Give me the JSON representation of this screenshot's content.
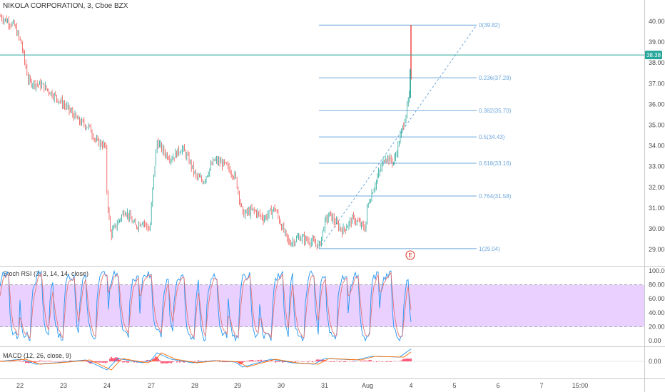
{
  "header": {
    "symbol_title": "NIKOLA CORPORATION, 3, Cboe BZX"
  },
  "price_axis": {
    "ticks": [
      "40.00",
      "39.00",
      "38.00",
      "37.00",
      "36.00",
      "35.00",
      "34.00",
      "33.00",
      "32.00",
      "31.00",
      "30.00",
      "29.00"
    ],
    "tick_values": [
      40,
      39,
      38,
      37,
      36,
      35,
      34,
      33,
      32,
      31,
      30,
      29
    ],
    "min": 28.6,
    "max": 40.75
  },
  "current_price": {
    "label": "38.38",
    "value": 38.38,
    "color": "#26a69a"
  },
  "fib": {
    "color": "#6fa8dc",
    "levels": [
      {
        "label": "0(39.82)",
        "value": 39.82
      },
      {
        "label": "0.236(37.28)",
        "value": 37.28
      },
      {
        "label": "0.382(35.70)",
        "value": 35.7
      },
      {
        "label": "0.5(34.43)",
        "value": 34.43
      },
      {
        "label": "0.618(33.16)",
        "value": 33.16
      },
      {
        "label": "0.764(31.58)",
        "value": 31.58
      },
      {
        "label": "1(29.04)",
        "value": 29.04
      }
    ]
  },
  "earnings_marker": {
    "label": "E",
    "color": "#d93025"
  },
  "stoch": {
    "title": "Stoch RSI (3, 3, 14, 14, close)",
    "ticks": [
      "100.00",
      "80.00",
      "60.00",
      "40.00",
      "20.00",
      "0.00"
    ],
    "tick_values": [
      100,
      80,
      60,
      40,
      20,
      0
    ],
    "band": [
      20,
      80
    ],
    "band_color": "#e9d0ff",
    "k_color": "#2196f3",
    "d_color": "#e57373"
  },
  "macd": {
    "title": "MACD (12, 26, close, 9)",
    "ticks": [
      "0.00"
    ],
    "hist_color": "#ff1744",
    "macd_color": "#2196f3",
    "signal_color": "#ff6d00"
  },
  "time_axis": {
    "labels": [
      "22",
      "23",
      "24",
      "27",
      "28",
      "29",
      "30",
      "31",
      "Aug",
      "4",
      "5",
      "6",
      "7",
      "15:00"
    ]
  },
  "candles": {
    "up_color": "#26a69a",
    "down_color": "#ef5350",
    "anchors": [
      [
        0,
        40.25
      ],
      [
        20,
        39.8
      ],
      [
        30,
        38.9
      ],
      [
        40,
        37.1
      ],
      [
        60,
        36.9
      ],
      [
        80,
        36.3
      ],
      [
        95,
        35.8
      ],
      [
        110,
        35.2
      ],
      [
        125,
        34.9
      ],
      [
        135,
        34.2
      ],
      [
        148,
        34.0
      ],
      [
        150,
        31.6
      ],
      [
        155,
        29.7
      ],
      [
        165,
        30.3
      ],
      [
        175,
        30.9
      ],
      [
        190,
        30.1
      ],
      [
        200,
        30.4
      ],
      [
        210,
        29.9
      ],
      [
        214,
        32.0
      ],
      [
        220,
        34.2
      ],
      [
        232,
        33.6
      ],
      [
        240,
        33.4
      ],
      [
        255,
        33.9
      ],
      [
        265,
        33.3
      ],
      [
        275,
        32.5
      ],
      [
        285,
        32.3
      ],
      [
        300,
        33.3
      ],
      [
        315,
        33.1
      ],
      [
        330,
        32.5
      ],
      [
        340,
        30.7
      ],
      [
        355,
        30.9
      ],
      [
        370,
        30.5
      ],
      [
        385,
        31.0
      ],
      [
        395,
        30.1
      ],
      [
        405,
        29.3
      ],
      [
        420,
        29.6
      ],
      [
        435,
        29.4
      ],
      [
        448,
        29.2
      ],
      [
        455,
        30.3
      ],
      [
        462,
        30.7
      ],
      [
        470,
        30.3
      ],
      [
        480,
        29.9
      ],
      [
        495,
        30.5
      ],
      [
        512,
        30.0
      ],
      [
        515,
        31.1
      ],
      [
        525,
        32.1
      ],
      [
        540,
        33.5
      ],
      [
        552,
        33.2
      ],
      [
        560,
        34.3
      ],
      [
        568,
        35.4
      ],
      [
        575,
        36.6
      ],
      [
        576,
        38.2
      ],
      [
        577,
        39.3
      ]
    ]
  }
}
